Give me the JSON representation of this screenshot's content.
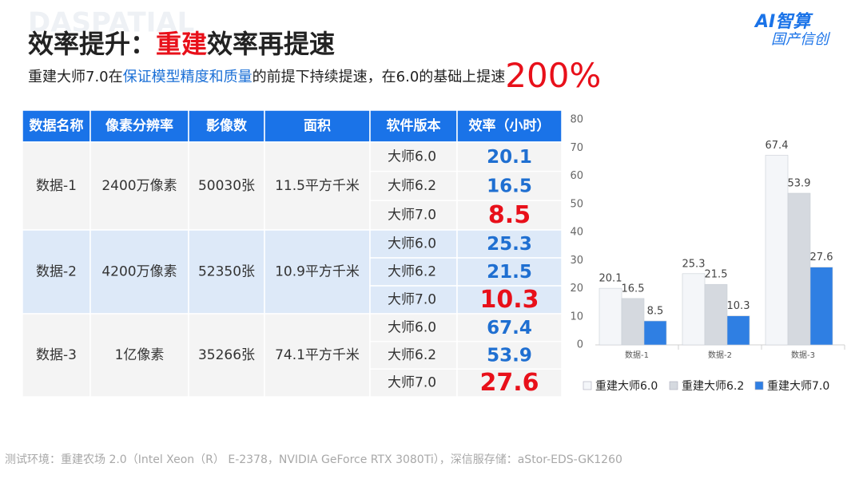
{
  "header": {
    "watermark": "DASPATIAL",
    "title": [
      "效率提升：",
      "重建",
      "效率再提速"
    ],
    "subtitle": [
      "重建大师7.0在",
      "保证模型精度和质量",
      "的前提下持续提速，在6.0的基础上提速",
      "200%"
    ],
    "logo": [
      "AI智算",
      "国产信创"
    ]
  },
  "table": {
    "headers": [
      "数据名称",
      "像素分辨率",
      "影像数",
      "面积",
      "软件版本",
      "效率（小时）"
    ],
    "groups": [
      {
        "name": "数据-1",
        "resolution": "2400万像素",
        "images": "50030张",
        "area": "11.5平方千米",
        "rows": [
          {
            "version": "大师6.0",
            "efficiency": 20.1
          },
          {
            "version": "大师6.2",
            "efficiency": 16.5
          },
          {
            "version": "大师7.0",
            "efficiency": 8.5
          }
        ]
      },
      {
        "name": "数据-2",
        "resolution": "4200万像素",
        "images": "52350张",
        "area": "10.9平方千米",
        "rows": [
          {
            "version": "大师6.0",
            "efficiency": 25.3
          },
          {
            "version": "大师6.2",
            "efficiency": 21.5
          },
          {
            "version": "大师7.0",
            "efficiency": 10.3
          }
        ]
      },
      {
        "name": "数据-3",
        "resolution": "1亿像素",
        "images": "35266张",
        "area": "74.1平方千米",
        "rows": [
          {
            "version": "大师6.0",
            "efficiency": 67.4
          },
          {
            "version": "大师6.2",
            "efficiency": 53.9
          },
          {
            "version": "大师7.0",
            "efficiency": 27.6
          }
        ]
      }
    ]
  },
  "footer": "测试环境：重建农场 2.0（Intel Xeon（R） E-2378，NVIDIA GeForce RTX 3080Ti），深信服存储：aStor-EDS-GK1260",
  "chart_data": {
    "type": "bar",
    "categories": [
      "数据-1",
      "数据-2",
      "数据-3"
    ],
    "series": [
      {
        "name": "重建大师6.0",
        "color": "#f4f6f9",
        "values": [
          20.1,
          25.3,
          67.4
        ]
      },
      {
        "name": "重建大师6.2",
        "color": "#d5d9df",
        "values": [
          16.5,
          21.5,
          53.9
        ]
      },
      {
        "name": "重建大师7.0",
        "color": "#2f7fe3",
        "values": [
          8.5,
          10.3,
          27.6
        ]
      }
    ],
    "ylim": [
      0,
      80
    ],
    "yticks": [
      0,
      10,
      20,
      30,
      40,
      50,
      60,
      70,
      80
    ],
    "grid": false,
    "legend": "bottom"
  }
}
